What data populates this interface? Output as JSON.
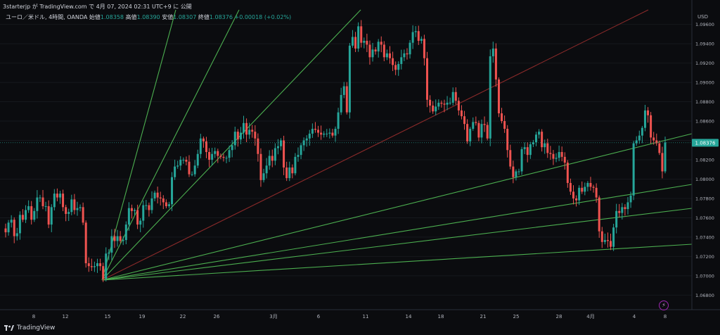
{
  "header": {
    "publish_line": "3starterjp が TradingView.com で 4月 07, 2024 02:31 UTC+9 に 公開"
  },
  "symbol": {
    "name": "ユーロ／米ドル, 4時間, OANDA",
    "open_label": "始値",
    "open": "1.08358",
    "high_label": "高値",
    "high": "1.08390",
    "low_label": "安値",
    "low": "1.08307",
    "close_label": "終値",
    "close": "1.08376",
    "change": "+0.00018 (+0.02%)"
  },
  "price_axis": {
    "currency": "USD",
    "current_price": "1.08376"
  },
  "brand": {
    "name": "TradingView"
  },
  "icons": {
    "bolt": "lightning-icon",
    "logo": "tradingview-logo-icon"
  },
  "colors": {
    "background": "#0b0c0f",
    "up": "#26a69a",
    "down": "#ef5350",
    "fan_line": "#4caf50",
    "fan_center": "#8b2a2a"
  },
  "chart_data": {
    "type": "candlestick",
    "symbol": "EUR/USD",
    "timeframe": "4H",
    "ylim": [
      1.0665,
      1.0975
    ],
    "y_ticks": [
      "1.06800",
      "1.07000",
      "1.07200",
      "1.07400",
      "1.07600",
      "1.07800",
      "1.08000",
      "1.08200",
      "1.08400",
      "1.08600",
      "1.08800",
      "1.09000",
      "1.09200",
      "1.09400",
      "1.09600"
    ],
    "x_ticks": [
      "8",
      "12",
      "15",
      "19",
      "22",
      "26",
      "3月",
      "6",
      "11",
      "14",
      "18",
      "21",
      "25",
      "28",
      "4月",
      "4",
      "8"
    ],
    "closes": [
      1.0745,
      1.0755,
      1.0758,
      1.0741,
      1.0744,
      1.0763,
      1.0758,
      1.0768,
      1.0772,
      1.0758,
      1.0767,
      1.0781,
      1.0781,
      1.0772,
      1.0772,
      1.0753,
      1.0771,
      1.0785,
      1.0781,
      1.0785,
      1.0771,
      1.0764,
      1.0766,
      1.0779,
      1.0768,
      1.077,
      1.0771,
      1.0755,
      1.0713,
      1.071,
      1.0709,
      1.071,
      1.0713,
      1.071,
      1.0697,
      1.0723,
      1.0724,
      1.0741,
      1.0736,
      1.0741,
      1.0736,
      1.0737,
      1.0753,
      1.077,
      1.0767,
      1.0768,
      1.0753,
      1.0757,
      1.0773,
      1.0773,
      1.0768,
      1.078,
      1.0786,
      1.0781,
      1.078,
      1.0776,
      1.0772,
      1.0774,
      1.0802,
      1.0813,
      1.0814,
      1.082,
      1.082,
      1.0818,
      1.0805,
      1.0805,
      1.0814,
      1.0826,
      1.0842,
      1.0839,
      1.0828,
      1.082,
      1.0826,
      1.0829,
      1.0824,
      1.0823,
      1.0822,
      1.0822,
      1.083,
      1.0835,
      1.0849,
      1.0841,
      1.0848,
      1.0858,
      1.0846,
      1.0851,
      1.0849,
      1.0842,
      1.0826,
      1.0799,
      1.0806,
      1.0814,
      1.0824,
      1.0819,
      1.0832,
      1.0834,
      1.084,
      1.0812,
      1.0801,
      1.0812,
      1.0806,
      1.0823,
      1.0825,
      1.0835,
      1.084,
      1.0842,
      1.0847,
      1.0852,
      1.0851,
      1.0848,
      1.0846,
      1.0847,
      1.0847,
      1.0848,
      1.0845,
      1.0852,
      1.0869,
      1.0887,
      1.0896,
      1.0869,
      1.0938,
      1.0947,
      1.0935,
      1.0958,
      1.0941,
      1.0943,
      1.0939,
      1.0926,
      1.0934,
      1.0932,
      1.0942,
      1.0939,
      1.0926,
      1.093,
      1.0925,
      1.0918,
      1.0913,
      1.0919,
      1.0926,
      1.093,
      1.0929,
      1.0941,
      1.0952,
      1.0953,
      1.0943,
      1.0945,
      1.0925,
      1.0882,
      1.0876,
      1.087,
      1.0875,
      1.0879,
      1.0878,
      1.0877,
      1.0879,
      1.0879,
      1.089,
      1.0881,
      1.0871,
      1.0865,
      1.0857,
      1.0839,
      1.0852,
      1.0859,
      1.0858,
      1.0843,
      1.0857,
      1.0856,
      1.0842,
      1.0927,
      1.0935,
      1.0903,
      1.0868,
      1.086,
      1.0852,
      1.083,
      1.0813,
      1.0802,
      1.0808,
      1.0808,
      1.0831,
      1.0833,
      1.0825,
      1.0836,
      1.0838,
      1.0846,
      1.0849,
      1.0833,
      1.0837,
      1.0827,
      1.0826,
      1.0821,
      1.0822,
      1.0828,
      1.0823,
      1.0817,
      1.0796,
      1.0787,
      1.078,
      1.0778,
      1.0791,
      1.0787,
      1.0792,
      1.0796,
      1.0792,
      1.0791,
      1.0781,
      1.0746,
      1.0735,
      1.0737,
      1.0736,
      1.073,
      1.075,
      1.0767,
      1.0765,
      1.0771,
      1.0769,
      1.0776,
      1.0783,
      1.0837,
      1.084,
      1.0845,
      1.0853,
      1.0871,
      1.0866,
      1.0843,
      1.084,
      1.0837,
      1.0827,
      1.0808,
      1.0838
    ]
  }
}
